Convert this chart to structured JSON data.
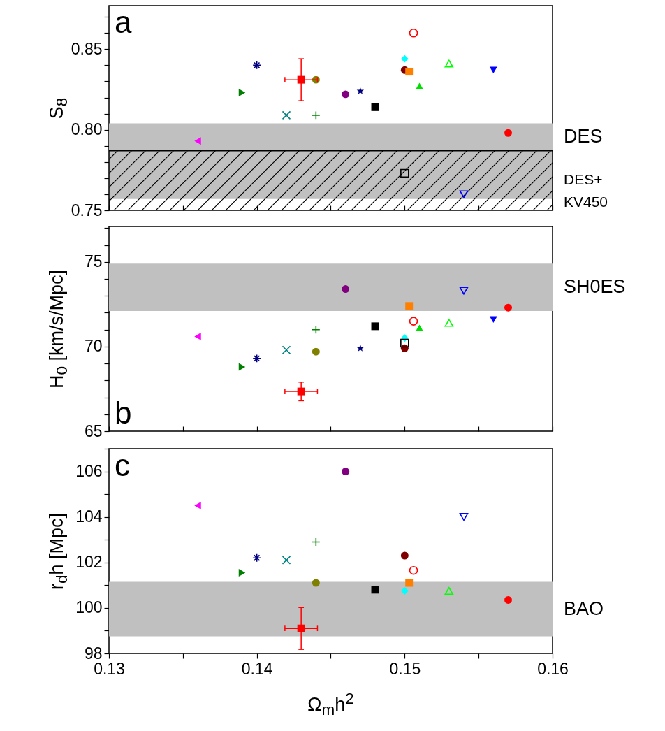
{
  "chart_data": [
    {
      "type": "scatter",
      "ylabel": "S$_{8}$",
      "annotations": [
        "a"
      ],
      "xlim": [
        0.13,
        0.16
      ],
      "xticks": [
        0.13,
        {
          "value": 0.135,
          "label": null
        },
        0.14,
        {
          "value": 0.145,
          "label": null
        },
        0.15,
        {
          "value": 0.155,
          "label": null
        },
        0.16
      ],
      "ylim": [
        0.75,
        0.877
      ],
      "yticks": [
        0.75,
        {
          "value": 0.76,
          "label": null
        },
        {
          "value": 0.77,
          "label": null
        },
        {
          "value": 0.78,
          "label": null
        },
        {
          "value": 0.79,
          "label": null
        },
        {
          "value": 0.8,
          "label": "0.80"
        },
        {
          "value": 0.81,
          "label": null
        },
        {
          "value": 0.82,
          "label": null
        },
        {
          "value": 0.83,
          "label": null
        },
        {
          "value": 0.84,
          "label": null
        },
        0.85,
        {
          "value": 0.86,
          "label": null
        },
        {
          "value": 0.87,
          "label": null
        }
      ],
      "tick_labels": "y",
      "grid": false,
      "bands": [
        {
          "axis": "y",
          "from": 0.757,
          "to": 0.804,
          "label": "DES",
          "color": "#c0c0c0"
        },
        {
          "axis": "y",
          "from": 0.75,
          "to": 0.787,
          "label": "DES+ KV450",
          "color": "#000000"
        }
      ],
      "series": [
        {
          "color": "#ff00ff",
          "marker": "triangle-left",
          "x": [
            0.136
          ],
          "values": [
            0.793
          ]
        },
        {
          "color": "#008000",
          "marker": "triangle-right",
          "x": [
            0.139
          ],
          "values": [
            0.823
          ]
        },
        {
          "color": "#000080",
          "marker": "cross",
          "x": [
            0.14
          ],
          "values": [
            0.84
          ]
        },
        {
          "color": "#008080",
          "marker": "x",
          "x": [
            0.142
          ],
          "values": [
            0.809
          ]
        },
        {
          "color": "#808000",
          "x": [
            0.144
          ],
          "values": [
            0.831
          ]
        },
        {
          "color": "#008000",
          "marker": "plus",
          "x": [
            0.144
          ],
          "values": [
            0.809
          ]
        },
        {
          "color": "#800080",
          "x": [
            0.146
          ],
          "values": [
            0.822
          ]
        },
        {
          "color": "#000080",
          "marker": "star",
          "x": [
            0.147
          ],
          "values": [
            0.824
          ]
        },
        {
          "color": "#000000",
          "marker": "square",
          "x": [
            0.148
          ],
          "values": [
            0.814
          ]
        },
        {
          "color": "#000000",
          "marker": "square-open",
          "x": [
            0.15
          ],
          "values": [
            0.773
          ]
        },
        {
          "color": "#800000",
          "marker": "circle",
          "x": [
            0.15
          ],
          "values": [
            0.837
          ]
        },
        {
          "color": "#00ffff",
          "marker": "diamond",
          "x": [
            0.15
          ],
          "values": [
            0.844
          ]
        },
        {
          "color": "#ff8000",
          "marker": "square",
          "x": [
            0.1503
          ],
          "values": [
            0.836
          ]
        },
        {
          "color": "#ff0000",
          "marker": "circle-open",
          "x": [
            0.1506
          ],
          "values": [
            0.86
          ]
        },
        {
          "color": "#00e000",
          "marker": "triangle",
          "x": [
            0.151
          ],
          "values": [
            0.827
          ]
        },
        {
          "color": "#00ff00",
          "marker": "triangle-open",
          "x": [
            0.153
          ],
          "values": [
            0.841
          ]
        },
        {
          "color": "#0000ff",
          "marker": "triangle-down-open",
          "x": [
            0.154
          ],
          "values": [
            0.76
          ]
        },
        {
          "color": "#0000ff",
          "marker": "triangle-down",
          "x": [
            0.156
          ],
          "values": [
            0.837
          ]
        },
        {
          "color": "#ff0000",
          "marker": "circle",
          "x": [
            0.157
          ],
          "values": [
            0.798
          ]
        },
        {
          "color": "#ff0000",
          "marker": "square",
          "x": [
            0.143
          ],
          "values": [
            0.831
          ],
          "errors": [
            0.013
          ],
          "xerrors": [
            0.0011
          ]
        }
      ]
    },
    {
      "type": "scatter",
      "ylabel": "H$_{0}$ [km/s/Mpc]",
      "annotations": [
        "b"
      ],
      "xlim": [
        0.13,
        0.16
      ],
      "xticks": [
        0.13,
        {
          "value": 0.135,
          "label": null
        },
        0.14,
        {
          "value": 0.145,
          "label": null
        },
        0.15,
        {
          "value": 0.155,
          "label": null
        },
        0.16
      ],
      "ylim": [
        65,
        77.1
      ],
      "yticks": [
        65,
        {
          "value": 66,
          "label": null
        },
        {
          "value": 67,
          "label": null
        },
        {
          "value": 68,
          "label": null
        },
        {
          "value": 69,
          "label": null
        },
        70,
        {
          "value": 71,
          "label": null
        },
        {
          "value": 72,
          "label": null
        },
        {
          "value": 73,
          "label": null
        },
        {
          "value": 74,
          "label": null
        },
        75,
        {
          "value": 76,
          "label": null
        },
        {
          "value": 77,
          "label": null
        }
      ],
      "tick_labels": "y",
      "grid": false,
      "bands": [
        {
          "axis": "y",
          "from": 72.1,
          "to": 74.9,
          "label": "SH0ES",
          "color": "#c0c0c0"
        }
      ],
      "series": [
        {
          "color": "#ff00ff",
          "marker": "triangle-left",
          "x": [
            0.136
          ],
          "values": [
            70.6
          ]
        },
        {
          "color": "#008000",
          "marker": "triangle-right",
          "x": [
            0.139
          ],
          "values": [
            68.8
          ]
        },
        {
          "color": "#000080",
          "marker": "cross",
          "x": [
            0.14
          ],
          "values": [
            69.3
          ]
        },
        {
          "color": "#008080",
          "marker": "x",
          "x": [
            0.142
          ],
          "values": [
            69.8
          ]
        },
        {
          "color": "#808000",
          "x": [
            0.144
          ],
          "values": [
            69.7
          ]
        },
        {
          "color": "#008000",
          "marker": "plus",
          "x": [
            0.144
          ],
          "values": [
            71.0
          ]
        },
        {
          "color": "#800080",
          "x": [
            0.146
          ],
          "values": [
            73.4
          ]
        },
        {
          "color": "#000080",
          "marker": "star",
          "x": [
            0.147
          ],
          "values": [
            69.9
          ]
        },
        {
          "color": "#000000",
          "marker": "square",
          "x": [
            0.148
          ],
          "values": [
            71.2
          ]
        },
        {
          "color": "#000000",
          "marker": "square-open",
          "x": [
            0.15
          ],
          "values": [
            70.2
          ]
        },
        {
          "color": "#800000",
          "marker": "circle",
          "x": [
            0.15
          ],
          "values": [
            69.9
          ]
        },
        {
          "color": "#00ffff",
          "marker": "diamond",
          "x": [
            0.15
          ],
          "values": [
            70.5
          ]
        },
        {
          "color": "#ff8000",
          "marker": "square",
          "x": [
            0.1503
          ],
          "values": [
            72.4
          ]
        },
        {
          "color": "#ff0000",
          "marker": "circle-open",
          "x": [
            0.1506
          ],
          "values": [
            71.5
          ]
        },
        {
          "color": "#00e000",
          "marker": "triangle",
          "x": [
            0.151
          ],
          "values": [
            71.1
          ]
        },
        {
          "color": "#00ff00",
          "marker": "triangle-open",
          "x": [
            0.153
          ],
          "values": [
            71.4
          ]
        },
        {
          "color": "#0000ff",
          "marker": "triangle-down-open",
          "x": [
            0.154
          ],
          "values": [
            73.3
          ]
        },
        {
          "color": "#0000ff",
          "marker": "triangle-down",
          "x": [
            0.156
          ],
          "values": [
            71.6
          ]
        },
        {
          "color": "#ff0000",
          "marker": "circle",
          "x": [
            0.157
          ],
          "values": [
            72.3
          ]
        },
        {
          "color": "#ff0000",
          "marker": "square",
          "x": [
            0.143
          ],
          "values": [
            67.35
          ],
          "errors": [
            0.55
          ],
          "xerrors": [
            0.0011
          ]
        }
      ]
    },
    {
      "type": "scatter",
      "ylabel": "r$_{d}$h [Mpc]",
      "xlabel": "Ω$_{m}$h$^{2}$",
      "annotations": [
        "c"
      ],
      "xlim": [
        0.13,
        0.16
      ],
      "xticks": [
        0.13,
        {
          "value": 0.135,
          "label": null
        },
        0.14,
        {
          "value": 0.145,
          "label": null
        },
        0.15,
        {
          "value": 0.155,
          "label": null
        },
        0.16
      ],
      "ylim": [
        98,
        107
      ],
      "yticks": [
        98,
        {
          "value": 99,
          "label": null
        },
        100,
        {
          "value": 101,
          "label": null
        },
        102,
        {
          "value": 103,
          "label": null
        },
        104,
        {
          "value": 105,
          "label": null
        },
        106,
        {
          "value": 107,
          "label": null
        }
      ],
      "grid": false,
      "bands": [
        {
          "axis": "y",
          "from": 98.75,
          "to": 101.15,
          "label": "BAO",
          "color": "#c0c0c0"
        }
      ],
      "series": [
        {
          "color": "#ff00ff",
          "marker": "triangle-left",
          "x": [
            0.136
          ],
          "values": [
            104.5
          ]
        },
        {
          "color": "#008000",
          "marker": "triangle-right",
          "x": [
            0.139
          ],
          "values": [
            101.55
          ]
        },
        {
          "color": "#000080",
          "marker": "cross",
          "x": [
            0.14
          ],
          "values": [
            102.2
          ]
        },
        {
          "color": "#008080",
          "marker": "x",
          "x": [
            0.142
          ],
          "values": [
            102.1
          ]
        },
        {
          "color": "#808000",
          "x": [
            0.144
          ],
          "values": [
            101.1
          ]
        },
        {
          "color": "#008000",
          "marker": "plus",
          "x": [
            0.144
          ],
          "values": [
            102.9
          ]
        },
        {
          "color": "#800080",
          "x": [
            0.146
          ],
          "values": [
            106.0
          ]
        },
        {
          "color": "#000000",
          "marker": "square",
          "x": [
            0.148
          ],
          "values": [
            100.8
          ]
        },
        {
          "color": "#800000",
          "marker": "circle",
          "x": [
            0.15
          ],
          "values": [
            102.3
          ]
        },
        {
          "color": "#00ffff",
          "marker": "diamond",
          "x": [
            0.15
          ],
          "values": [
            100.75
          ]
        },
        {
          "color": "#ff8000",
          "marker": "square",
          "x": [
            0.1503
          ],
          "values": [
            101.1
          ]
        },
        {
          "color": "#ff0000",
          "marker": "circle-open",
          "x": [
            0.1506
          ],
          "values": [
            101.65
          ]
        },
        {
          "color": "#00ff00",
          "marker": "triangle-open",
          "x": [
            0.153
          ],
          "values": [
            100.75
          ]
        },
        {
          "color": "#0000ff",
          "marker": "triangle-down-open",
          "x": [
            0.154
          ],
          "values": [
            104.0
          ]
        },
        {
          "color": "#ff0000",
          "marker": "circle",
          "x": [
            0.157
          ],
          "values": [
            100.35
          ]
        },
        {
          "color": "#ff0000",
          "marker": "square",
          "x": [
            0.143
          ],
          "values": [
            99.1
          ],
          "errors": [
            0.92
          ],
          "xerrors": [
            0.0011
          ]
        }
      ]
    }
  ]
}
